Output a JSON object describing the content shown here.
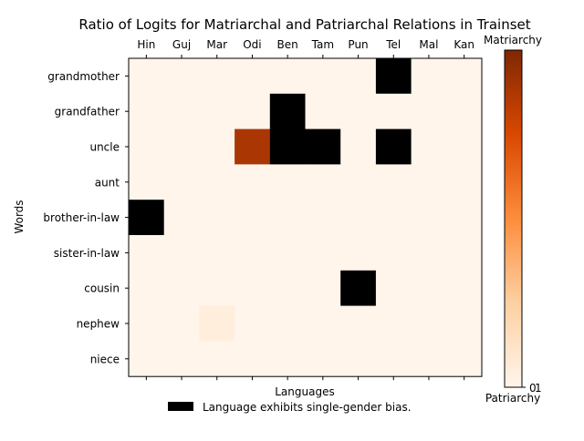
{
  "chart_data": {
    "type": "heatmap",
    "title": "Ratio of Logits for Matriarchal and Patriarchal Relations in Trainset",
    "xlabel": "Languages",
    "ylabel": "Words",
    "columns": [
      "Hin",
      "Guj",
      "Mar",
      "Odi",
      "Ben",
      "Tam",
      "Pun",
      "Tel",
      "Mal",
      "Kan"
    ],
    "rows": [
      "grandmother",
      "grandfather",
      "uncle",
      "aunt",
      "brother-in-law",
      "sister-in-law",
      "cousin",
      "nephew",
      "niece"
    ],
    "values": [
      [
        0,
        0,
        0,
        0,
        0,
        0,
        0,
        "bias",
        0,
        0
      ],
      [
        0,
        0,
        0,
        0,
        "bias",
        0,
        0,
        0,
        0,
        0
      ],
      [
        0,
        0,
        0,
        0.88,
        "bias",
        "bias",
        0,
        "bias",
        0,
        0
      ],
      [
        0,
        0,
        0,
        0,
        0,
        0,
        0,
        0,
        0,
        0
      ],
      [
        "bias",
        0,
        0,
        0,
        0,
        0,
        0,
        0,
        0,
        0
      ],
      [
        0,
        0,
        0,
        0,
        0,
        0,
        0,
        0,
        0,
        0
      ],
      [
        0,
        0,
        0,
        0,
        0,
        0,
        "bias",
        0,
        0,
        0
      ],
      [
        0,
        0,
        0.05,
        0,
        0,
        0,
        0,
        0,
        0,
        0
      ],
      [
        0,
        0,
        0,
        0,
        0,
        0,
        0,
        0,
        0,
        0
      ]
    ],
    "colormap": "Oranges",
    "bias_color": "#000000",
    "colorbar": {
      "top_label": "Matriarchy",
      "bottom_label": "Patriarchy",
      "ticks": [
        "0",
        "1"
      ],
      "range": [
        0,
        1
      ]
    },
    "legend": {
      "label": "Language exhibits single-gender bias.",
      "color": "#000000",
      "placement": "bottom-center"
    }
  }
}
